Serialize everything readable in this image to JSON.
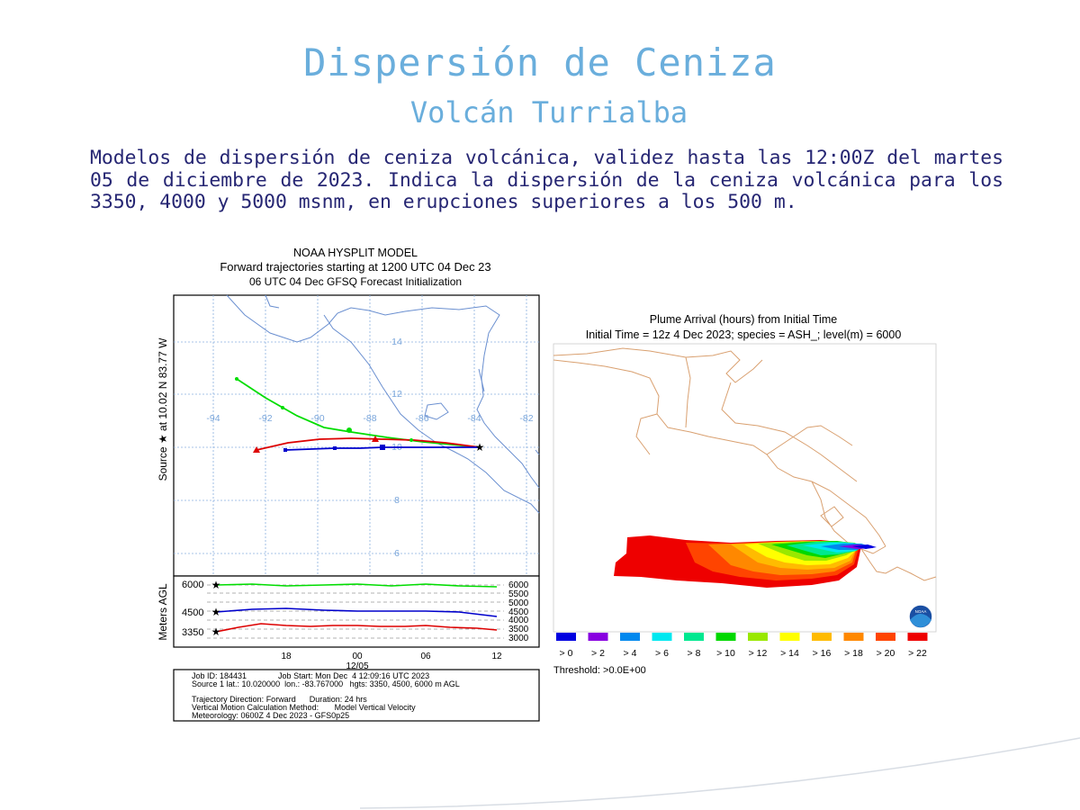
{
  "slide": {
    "title": "Dispersión de Ceniza",
    "subtitle": "Volcán Turrialba",
    "description": "Modelos de dispersión de ceniza volcánica, validez hasta las 12:00Z del martes 05 de diciembre de 2023. Indica la dispersión de la ceniza volcánica para los 3350, 4000 y 5000 msnm, en erupciones superiores a los 500 m."
  },
  "hysplit": {
    "header_line1": "NOAA HYSPLIT MODEL",
    "header_line2": "Forward trajectories starting at 1200 UTC 04 Dec 23",
    "header_line3": "06 UTC 04 Dec   GFSQ  Forecast Initialization",
    "side_label": "Source ★  at   10.02 N   83.77 W",
    "lon_labels": [
      "-94",
      "-92",
      "-90",
      "-88",
      "-86",
      "-84",
      "-82"
    ],
    "lat_labels": [
      "14",
      "12",
      "10",
      "8",
      "6"
    ],
    "height_axis_label": "Meters AGL",
    "height_left_labels": [
      "6000",
      "4500",
      "3350"
    ],
    "height_right_labels": [
      "6000",
      "5500",
      "5000",
      "4500",
      "4000",
      "3500",
      "3000"
    ],
    "time_labels": [
      "18",
      "00",
      "06",
      "12"
    ],
    "date_label": "12/05",
    "info_line1": "Job ID: 184431              Job Start: Mon Dec  4 12:09:16 UTC 2023",
    "info_line2": "Source 1 lat.: 10.020000  lon.: -83.767000   hgts: 3350, 4500, 6000 m AGL",
    "info_line3": "Trajectory Direction: Forward      Duration: 24 hrs",
    "info_line4": "Vertical Motion Calculation Method:       Model Vertical Velocity",
    "info_line5": "Meteorology: 0600Z 4 Dec 2023 - GFS0p25",
    "colors": {
      "h6000": "#00dd00",
      "h4500": "#0000cc",
      "h3350": "#dd0000",
      "coast": "#6a8fd0",
      "grid": "#8ab0e0"
    }
  },
  "plume": {
    "title_line1": "Plume Arrival (hours) from Initial Time",
    "title_line2": "Initial Time = 12z  4 Dec 2023;  species = ASH_;  level(m) =  6000",
    "legend_labels": [
      "> 0",
      "> 2",
      "> 4",
      "> 6",
      "> 8",
      "> 10",
      "> 12",
      "> 14",
      "> 16",
      "> 18",
      "> 20",
      "> 22"
    ],
    "legend_colors": [
      "#0000e0",
      "#8800e0",
      "#0088ee",
      "#00e8f0",
      "#00e890",
      "#00d800",
      "#99e800",
      "#ffff00",
      "#ffbb00",
      "#ff8800",
      "#ff4400",
      "#ee0000"
    ],
    "threshold": "Threshold: >0.0E+00",
    "border_color": "#d9a070",
    "logo_text": "NOAA"
  }
}
